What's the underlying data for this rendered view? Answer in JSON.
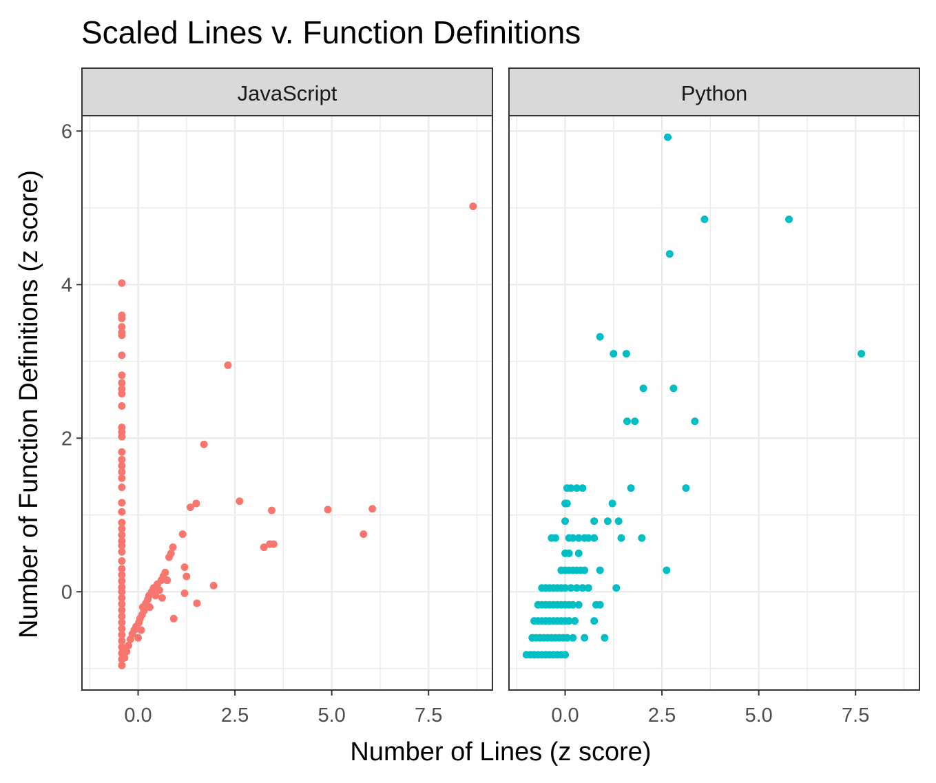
{
  "chart_data": {
    "type": "scatter",
    "title": "Scaled Lines v. Function Definitions",
    "xlabel": "Number of Lines (z score)",
    "ylabel": "Number of Function Definitions (z score)",
    "xlim": [
      -1.45,
      9.15
    ],
    "ylim": [
      -1.28,
      6.2
    ],
    "x_ticks": [
      0,
      2.5,
      5,
      7.5
    ],
    "x_tick_labels": [
      "0.0",
      "2.5",
      "5.0",
      "7.5"
    ],
    "y_ticks": [
      0,
      2,
      4,
      6
    ],
    "y_tick_labels": [
      "0",
      "2",
      "4",
      "6"
    ],
    "grid": true,
    "legend": "none",
    "panels": [
      {
        "name": "JavaScript",
        "color": "#F8766D",
        "points": [
          [
            -0.42,
            4.02
          ],
          [
            -0.42,
            3.6
          ],
          [
            -0.42,
            3.56
          ],
          [
            -0.42,
            3.45
          ],
          [
            -0.42,
            3.38
          ],
          [
            -0.42,
            3.34
          ],
          [
            -0.42,
            3.08
          ],
          [
            -0.42,
            2.82
          ],
          [
            -0.42,
            2.72
          ],
          [
            -0.42,
            2.64
          ],
          [
            -0.42,
            2.58
          ],
          [
            -0.42,
            2.42
          ],
          [
            -0.42,
            2.14
          ],
          [
            -0.42,
            2.08
          ],
          [
            -0.42,
            2.02
          ],
          [
            -0.42,
            1.82
          ],
          [
            -0.42,
            1.72
          ],
          [
            -0.42,
            1.64
          ],
          [
            -0.42,
            1.56
          ],
          [
            -0.42,
            1.48
          ],
          [
            -0.42,
            1.36
          ],
          [
            -0.42,
            1.16
          ],
          [
            -0.42,
            1.04
          ],
          [
            -0.42,
            0.9
          ],
          [
            -0.42,
            0.82
          ],
          [
            -0.42,
            0.74
          ],
          [
            -0.42,
            0.66
          ],
          [
            -0.42,
            0.6
          ],
          [
            -0.42,
            0.52
          ],
          [
            -0.42,
            0.4
          ],
          [
            -0.42,
            0.3
          ],
          [
            -0.42,
            0.22
          ],
          [
            -0.42,
            0.14
          ],
          [
            -0.42,
            0.06
          ],
          [
            -0.42,
            0.0
          ],
          [
            -0.42,
            -0.08
          ],
          [
            -0.42,
            -0.16
          ],
          [
            -0.42,
            -0.24
          ],
          [
            -0.42,
            -0.32
          ],
          [
            -0.42,
            -0.4
          ],
          [
            -0.42,
            -0.48
          ],
          [
            -0.42,
            -0.56
          ],
          [
            -0.42,
            -0.64
          ],
          [
            -0.42,
            -0.72
          ],
          [
            -0.42,
            -0.8
          ],
          [
            -0.42,
            -0.88
          ],
          [
            -0.42,
            -0.96
          ],
          [
            -0.35,
            -0.86
          ],
          [
            -0.3,
            -0.78
          ],
          [
            -0.25,
            -0.7
          ],
          [
            -0.2,
            -0.62
          ],
          [
            -0.15,
            -0.55
          ],
          [
            -0.1,
            -0.5
          ],
          [
            -0.05,
            -0.45
          ],
          [
            0.0,
            -0.6
          ],
          [
            0.02,
            -0.4
          ],
          [
            0.05,
            -0.35
          ],
          [
            0.08,
            -0.5
          ],
          [
            0.1,
            -0.3
          ],
          [
            0.12,
            -0.2
          ],
          [
            0.15,
            -0.25
          ],
          [
            0.2,
            -0.15
          ],
          [
            0.25,
            -0.1
          ],
          [
            0.28,
            -0.05
          ],
          [
            0.3,
            -0.2
          ],
          [
            0.35,
            0.0
          ],
          [
            0.4,
            0.05
          ],
          [
            0.45,
            -0.05
          ],
          [
            0.5,
            0.1
          ],
          [
            0.55,
            0.02
          ],
          [
            0.6,
            0.15
          ],
          [
            0.62,
            -0.08
          ],
          [
            0.65,
            0.2
          ],
          [
            0.7,
            0.25
          ],
          [
            0.75,
            0.15
          ],
          [
            0.8,
            0.45
          ],
          [
            0.85,
            0.5
          ],
          [
            0.9,
            0.58
          ],
          [
            0.92,
            -0.35
          ],
          [
            1.15,
            0.75
          ],
          [
            1.2,
            0.32
          ],
          [
            1.2,
            -0.02
          ],
          [
            1.25,
            0.2
          ],
          [
            1.35,
            1.1
          ],
          [
            1.5,
            1.15
          ],
          [
            1.52,
            -0.15
          ],
          [
            1.7,
            1.92
          ],
          [
            1.95,
            0.08
          ],
          [
            2.32,
            2.95
          ],
          [
            2.62,
            1.18
          ],
          [
            3.25,
            0.58
          ],
          [
            3.4,
            0.62
          ],
          [
            3.45,
            1.06
          ],
          [
            3.5,
            0.62
          ],
          [
            4.9,
            1.07
          ],
          [
            5.82,
            0.75
          ],
          [
            6.05,
            1.08
          ],
          [
            8.65,
            5.02
          ]
        ]
      },
      {
        "name": "Python",
        "color": "#00BFC4",
        "points": [
          [
            2.65,
            5.92
          ],
          [
            3.6,
            4.85
          ],
          [
            5.78,
            4.85
          ],
          [
            2.7,
            4.4
          ],
          [
            0.9,
            3.32
          ],
          [
            1.25,
            3.1
          ],
          [
            1.58,
            3.1
          ],
          [
            7.65,
            3.1
          ],
          [
            2.02,
            2.65
          ],
          [
            2.8,
            2.65
          ],
          [
            1.6,
            2.22
          ],
          [
            1.8,
            2.22
          ],
          [
            3.35,
            2.22
          ],
          [
            1.7,
            1.35
          ],
          [
            3.12,
            1.35
          ],
          [
            0.05,
            1.35
          ],
          [
            0.15,
            1.35
          ],
          [
            0.3,
            1.35
          ],
          [
            0.45,
            1.35
          ],
          [
            1.22,
            1.15
          ],
          [
            0.0,
            1.15
          ],
          [
            0.05,
            1.15
          ],
          [
            0.0,
            0.92
          ],
          [
            0.75,
            0.92
          ],
          [
            1.1,
            0.92
          ],
          [
            1.38,
            0.92
          ],
          [
            -0.35,
            0.7
          ],
          [
            -0.25,
            0.7
          ],
          [
            0.1,
            0.7
          ],
          [
            0.2,
            0.7
          ],
          [
            0.35,
            0.7
          ],
          [
            0.5,
            0.7
          ],
          [
            0.6,
            0.7
          ],
          [
            0.75,
            0.7
          ],
          [
            1.45,
            0.7
          ],
          [
            1.98,
            0.7
          ],
          [
            0.0,
            0.5
          ],
          [
            0.1,
            0.5
          ],
          [
            0.35,
            0.5
          ],
          [
            -0.1,
            0.28
          ],
          [
            0.0,
            0.28
          ],
          [
            0.1,
            0.28
          ],
          [
            0.2,
            0.28
          ],
          [
            0.3,
            0.28
          ],
          [
            0.4,
            0.28
          ],
          [
            0.5,
            0.28
          ],
          [
            0.9,
            0.28
          ],
          [
            2.62,
            0.28
          ],
          [
            -0.6,
            0.05
          ],
          [
            -0.5,
            0.05
          ],
          [
            -0.4,
            0.05
          ],
          [
            -0.3,
            0.05
          ],
          [
            -0.2,
            0.05
          ],
          [
            -0.1,
            0.05
          ],
          [
            0.0,
            0.05
          ],
          [
            0.15,
            0.05
          ],
          [
            0.3,
            0.05
          ],
          [
            0.45,
            0.05
          ],
          [
            0.6,
            0.05
          ],
          [
            1.32,
            0.05
          ],
          [
            -0.7,
            -0.17
          ],
          [
            -0.6,
            -0.17
          ],
          [
            -0.5,
            -0.17
          ],
          [
            -0.4,
            -0.17
          ],
          [
            -0.3,
            -0.17
          ],
          [
            -0.2,
            -0.17
          ],
          [
            -0.1,
            -0.17
          ],
          [
            0.0,
            -0.17
          ],
          [
            0.1,
            -0.17
          ],
          [
            0.2,
            -0.17
          ],
          [
            0.35,
            -0.17
          ],
          [
            0.8,
            -0.17
          ],
          [
            0.9,
            -0.17
          ],
          [
            -0.8,
            -0.38
          ],
          [
            -0.7,
            -0.38
          ],
          [
            -0.6,
            -0.38
          ],
          [
            -0.5,
            -0.38
          ],
          [
            -0.4,
            -0.38
          ],
          [
            -0.3,
            -0.38
          ],
          [
            -0.2,
            -0.38
          ],
          [
            -0.1,
            -0.38
          ],
          [
            0.0,
            -0.38
          ],
          [
            0.1,
            -0.38
          ],
          [
            0.25,
            -0.38
          ],
          [
            0.75,
            -0.38
          ],
          [
            -0.85,
            -0.6
          ],
          [
            -0.75,
            -0.6
          ],
          [
            -0.65,
            -0.6
          ],
          [
            -0.55,
            -0.6
          ],
          [
            -0.45,
            -0.6
          ],
          [
            -0.35,
            -0.6
          ],
          [
            -0.25,
            -0.6
          ],
          [
            -0.15,
            -0.6
          ],
          [
            -0.05,
            -0.6
          ],
          [
            0.05,
            -0.6
          ],
          [
            0.2,
            -0.6
          ],
          [
            0.5,
            -0.6
          ],
          [
            1.02,
            -0.6
          ],
          [
            -1.0,
            -0.82
          ],
          [
            -0.9,
            -0.82
          ],
          [
            -0.8,
            -0.82
          ],
          [
            -0.7,
            -0.82
          ],
          [
            -0.6,
            -0.82
          ],
          [
            -0.5,
            -0.82
          ],
          [
            -0.4,
            -0.82
          ],
          [
            -0.3,
            -0.82
          ],
          [
            -0.2,
            -0.82
          ],
          [
            -0.1,
            -0.82
          ],
          [
            0.0,
            -0.82
          ]
        ]
      }
    ]
  }
}
